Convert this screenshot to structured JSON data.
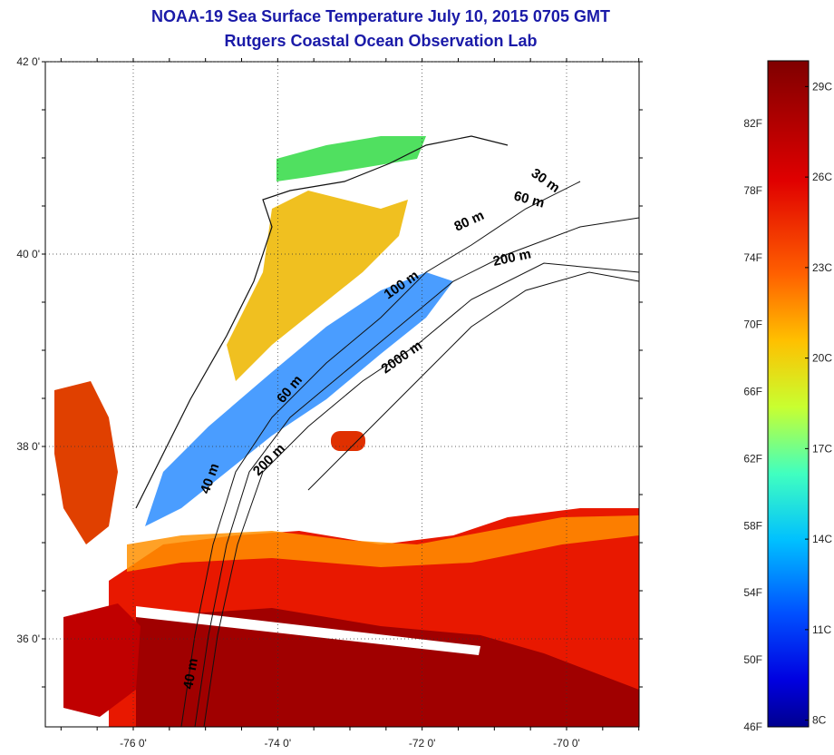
{
  "title": "NOAA-19 Sea Surface Temperature July 10, 2015 0705 GMT",
  "subtitle": "Rutgers Coastal Ocean Observation Lab",
  "map": {
    "lon_ticks": [
      {
        "value": -76,
        "label": "-76 0'"
      },
      {
        "value": -74,
        "label": "-74 0'"
      },
      {
        "value": -72,
        "label": "-72 0'"
      },
      {
        "value": -70,
        "label": "-70 0'"
      }
    ],
    "lat_ticks": [
      {
        "value": 42,
        "label": "42 0'"
      },
      {
        "value": 40,
        "label": "40 0'"
      },
      {
        "value": 38,
        "label": "38 0'"
      },
      {
        "value": 36,
        "label": "36 0'"
      }
    ],
    "lon_range": [
      -77.0,
      -69.0
    ],
    "lat_range": [
      35.0,
      42.0
    ],
    "grid": "dotted",
    "contour_labels": [
      "30 m",
      "60 m",
      "80 m",
      "200 m",
      "100 m",
      "2000 m",
      "60 m",
      "200 m",
      "40 m",
      "40 m"
    ]
  },
  "colorbar": {
    "fahrenheit_labels": [
      "82F",
      "78F",
      "74F",
      "70F",
      "66F",
      "62F",
      "58F",
      "54F",
      "50F",
      "46F"
    ],
    "celsius_labels": [
      "29C",
      "26C",
      "23C",
      "20C",
      "17C",
      "14C",
      "11C",
      "8C"
    ],
    "colors": [
      "#7f0000",
      "#ff0000",
      "#ff8000",
      "#ffff00",
      "#80ff80",
      "#00ffff",
      "#0080ff",
      "#0000ff",
      "#00008f"
    ]
  }
}
